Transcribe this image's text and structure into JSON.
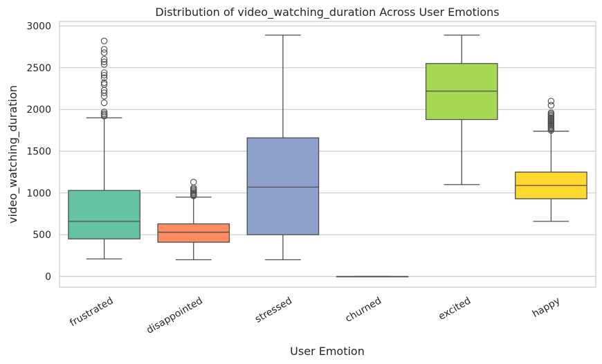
{
  "chart_data": {
    "type": "box",
    "title": "Distribution of video_watching_duration Across User Emotions",
    "xlabel": "User Emotion",
    "ylabel": "video_watching_duration",
    "ylim": [
      -130,
      3050
    ],
    "yticks": [
      0,
      500,
      1000,
      1500,
      2000,
      2500,
      3000
    ],
    "grid": true,
    "series": [
      {
        "category": "frustrated",
        "color": "#66c2a5",
        "whisker_low": 210,
        "q1": 450,
        "median": 660,
        "q3": 1030,
        "whisker_high": 1900,
        "outliers": [
          1920,
          1935,
          1950,
          1970,
          2080,
          2160,
          2200,
          2230,
          2300,
          2320,
          2380,
          2410,
          2440,
          2540,
          2570,
          2600,
          2680,
          2720,
          2820
        ]
      },
      {
        "category": "disappointed",
        "color": "#fc8d62",
        "whisker_low": 200,
        "q1": 410,
        "median": 530,
        "q3": 630,
        "whisker_high": 950,
        "outliers": [
          965,
          975,
          985,
          1000,
          1015,
          1030,
          1045,
          1060,
          1130
        ]
      },
      {
        "category": "stressed",
        "color": "#8da0cb",
        "whisker_low": 200,
        "q1": 500,
        "median": 1070,
        "q3": 1660,
        "whisker_high": 2890,
        "outliers": []
      },
      {
        "category": "churned",
        "color": "#e78ac3",
        "whisker_low": 0,
        "q1": 0,
        "median": 0,
        "q3": 0,
        "whisker_high": 0,
        "outliers": []
      },
      {
        "category": "excited",
        "color": "#a6d854",
        "whisker_low": 1100,
        "q1": 1880,
        "median": 2220,
        "q3": 2550,
        "whisker_high": 2890,
        "outliers": []
      },
      {
        "category": "happy",
        "color": "#ffd92f",
        "whisker_low": 660,
        "q1": 930,
        "median": 1090,
        "q3": 1250,
        "whisker_high": 1740,
        "outliers": [
          1750,
          1765,
          1780,
          1795,
          1810,
          1825,
          1840,
          1855,
          1870,
          1885,
          1900,
          1915,
          1930,
          1945,
          1960,
          2050,
          2100
        ]
      }
    ]
  }
}
